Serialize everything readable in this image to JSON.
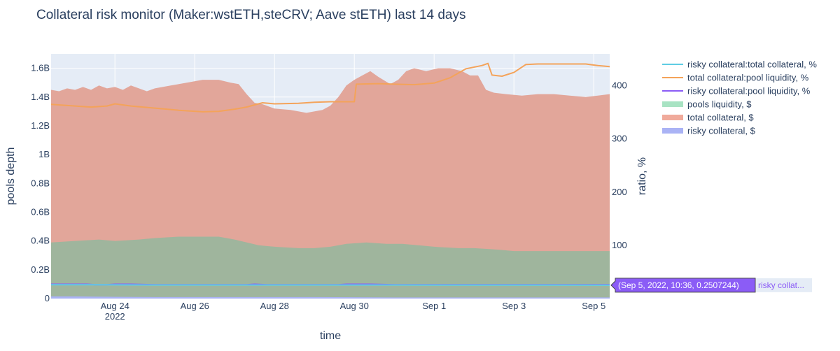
{
  "colors": {
    "plot_bg": "#e5ecf6",
    "grid": "#ffffff",
    "text": "#2a3f5f",
    "risky_total": "#5fcde4",
    "total_pool": "#f4a35a",
    "risky_pool": "#8b5cf6",
    "pools_liquidity_fill": "#9fb59d",
    "pools_liquidity_legend": "#a8e3c3",
    "total_collateral_fill": "#e2a69a",
    "total_collateral_legend": "#f0aa9b",
    "risky_collateral_fill": "#aab3f5",
    "hover_bg": "#8b5cf6",
    "hover_label_bg": "#e5ecf6"
  },
  "chart_data": {
    "type": "area",
    "title": "Collateral risk monitor (Maker:wstETH,steCRV; Aave stETH) last 14 days",
    "xlabel": "time",
    "ylabel": "pools depth",
    "y2label": "ratio, %",
    "x_ticks": [
      "Aug 24",
      "Aug 26",
      "Aug 28",
      "Aug 30",
      "Sep 1",
      "Sep 3",
      "Sep 5"
    ],
    "x_tick_days": [
      1,
      3,
      5,
      7,
      9,
      11,
      13
    ],
    "x_year_label": "2022",
    "x_range_days": [
      -0.6,
      13.4
    ],
    "y_ticks": [
      "0",
      "0.2B",
      "0.4B",
      "0.6B",
      "0.8B",
      "1B",
      "1.2B",
      "1.4B",
      "1.6B"
    ],
    "ylim_billions": [
      0,
      1.7
    ],
    "y2_ticks": [
      "100",
      "200",
      "300",
      "400"
    ],
    "y2lim": [
      0,
      460
    ],
    "legend": [
      {
        "label": "risky collateral:total collateral, %",
        "kind": "line",
        "color_key": "risky_total"
      },
      {
        "label": "total collateral:pool liquidity, %",
        "kind": "line",
        "color_key": "total_pool"
      },
      {
        "label": "risky collateral:pool liquidity, %",
        "kind": "line",
        "color_key": "risky_pool"
      },
      {
        "label": "pools liquidity, $",
        "kind": "area",
        "color_key": "pools_liquidity_legend"
      },
      {
        "label": "total collateral, $",
        "kind": "area",
        "color_key": "total_collateral_legend"
      },
      {
        "label": "risky collateral, $",
        "kind": "area",
        "color_key": "risky_collateral_fill"
      }
    ],
    "series": [
      {
        "name": "total collateral, $",
        "axis": "y",
        "kind": "area",
        "color_key": "total_collateral_fill",
        "points": [
          [
            -0.6,
            1.45
          ],
          [
            -0.4,
            1.44
          ],
          [
            -0.2,
            1.46
          ],
          [
            0,
            1.45
          ],
          [
            0.2,
            1.47
          ],
          [
            0.4,
            1.45
          ],
          [
            0.6,
            1.48
          ],
          [
            0.8,
            1.46
          ],
          [
            1,
            1.47
          ],
          [
            1.2,
            1.45
          ],
          [
            1.4,
            1.48
          ],
          [
            1.6,
            1.46
          ],
          [
            1.8,
            1.44
          ],
          [
            2,
            1.46
          ],
          [
            2.4,
            1.48
          ],
          [
            2.8,
            1.5
          ],
          [
            3.2,
            1.52
          ],
          [
            3.6,
            1.52
          ],
          [
            3.9,
            1.5
          ],
          [
            4.1,
            1.49
          ],
          [
            4.3,
            1.42
          ],
          [
            4.5,
            1.36
          ],
          [
            4.7,
            1.35
          ],
          [
            5,
            1.32
          ],
          [
            5.4,
            1.31
          ],
          [
            5.8,
            1.29
          ],
          [
            6.2,
            1.31
          ],
          [
            6.4,
            1.34
          ],
          [
            6.6,
            1.4
          ],
          [
            6.8,
            1.48
          ],
          [
            7,
            1.52
          ],
          [
            7.2,
            1.55
          ],
          [
            7.4,
            1.58
          ],
          [
            7.6,
            1.54
          ],
          [
            7.9,
            1.49
          ],
          [
            8.1,
            1.52
          ],
          [
            8.3,
            1.58
          ],
          [
            8.5,
            1.6
          ],
          [
            8.8,
            1.58
          ],
          [
            9.1,
            1.6
          ],
          [
            9.4,
            1.6
          ],
          [
            9.7,
            1.58
          ],
          [
            9.9,
            1.55
          ],
          [
            10.1,
            1.55
          ],
          [
            10.3,
            1.45
          ],
          [
            10.5,
            1.43
          ],
          [
            10.8,
            1.42
          ],
          [
            11.2,
            1.41
          ],
          [
            11.6,
            1.42
          ],
          [
            12.0,
            1.42
          ],
          [
            12.4,
            1.41
          ],
          [
            12.8,
            1.4
          ],
          [
            13.1,
            1.41
          ],
          [
            13.4,
            1.42
          ]
        ]
      },
      {
        "name": "pools liquidity, $",
        "axis": "y",
        "kind": "area",
        "color_key": "pools_liquidity_fill",
        "points": [
          [
            -0.6,
            0.39
          ],
          [
            0,
            0.4
          ],
          [
            0.6,
            0.41
          ],
          [
            1,
            0.4
          ],
          [
            1.6,
            0.41
          ],
          [
            2,
            0.42
          ],
          [
            2.6,
            0.43
          ],
          [
            3,
            0.43
          ],
          [
            3.6,
            0.43
          ],
          [
            4,
            0.41
          ],
          [
            4.6,
            0.37
          ],
          [
            5,
            0.36
          ],
          [
            5.6,
            0.35
          ],
          [
            6,
            0.35
          ],
          [
            6.4,
            0.36
          ],
          [
            6.8,
            0.38
          ],
          [
            7.3,
            0.39
          ],
          [
            7.8,
            0.38
          ],
          [
            8.2,
            0.38
          ],
          [
            8.6,
            0.37
          ],
          [
            9,
            0.36
          ],
          [
            9.6,
            0.35
          ],
          [
            10,
            0.35
          ],
          [
            10.6,
            0.34
          ],
          [
            11,
            0.33
          ],
          [
            11.6,
            0.33
          ],
          [
            12,
            0.33
          ],
          [
            12.6,
            0.33
          ],
          [
            13,
            0.33
          ],
          [
            13.4,
            0.33
          ]
        ]
      },
      {
        "name": "risky collateral, $",
        "axis": "y",
        "kind": "area",
        "color_key": "risky_collateral_fill",
        "points": [
          [
            -0.6,
            0.015
          ],
          [
            0,
            0.015
          ],
          [
            1,
            0.012
          ],
          [
            2,
            0.01
          ],
          [
            4,
            0.01
          ],
          [
            6,
            0.01
          ],
          [
            8,
            0.008
          ],
          [
            10,
            0.008
          ],
          [
            12,
            0.008
          ],
          [
            13.4,
            0.008
          ]
        ]
      },
      {
        "name": "total collateral:pool liquidity, %",
        "axis": "y2",
        "kind": "line",
        "color_key": "total_pool",
        "points": [
          [
            -0.6,
            365
          ],
          [
            0,
            362
          ],
          [
            0.4,
            360
          ],
          [
            0.8,
            362
          ],
          [
            1,
            366
          ],
          [
            1.4,
            362
          ],
          [
            2,
            358
          ],
          [
            2.6,
            354
          ],
          [
            3.2,
            351
          ],
          [
            3.6,
            352
          ],
          [
            4.0,
            356
          ],
          [
            4.3,
            360
          ],
          [
            4.5,
            364
          ],
          [
            4.7,
            368
          ],
          [
            5,
            366
          ],
          [
            5.6,
            367
          ],
          [
            6,
            369
          ],
          [
            6.4,
            370
          ],
          [
            6.8,
            370
          ],
          [
            7.0,
            370
          ],
          [
            7.05,
            403
          ],
          [
            7.6,
            404
          ],
          [
            8,
            403
          ],
          [
            8.5,
            402
          ],
          [
            9,
            405
          ],
          [
            9.4,
            415
          ],
          [
            9.8,
            432
          ],
          [
            10.2,
            438
          ],
          [
            10.35,
            442
          ],
          [
            10.45,
            420
          ],
          [
            10.7,
            418
          ],
          [
            11.0,
            425
          ],
          [
            11.3,
            440
          ],
          [
            11.6,
            441
          ],
          [
            12,
            441
          ],
          [
            12.4,
            441
          ],
          [
            12.8,
            441
          ],
          [
            13.1,
            438
          ],
          [
            13.4,
            436
          ]
        ]
      },
      {
        "name": "risky collateral:pool liquidity, %",
        "axis": "y2",
        "kind": "line",
        "color_key": "risky_pool",
        "points": [
          [
            -0.6,
            27
          ],
          [
            -0.2,
            27
          ],
          [
            0,
            27
          ],
          [
            0.3,
            27
          ],
          [
            0.5,
            26
          ],
          [
            0.8,
            26
          ],
          [
            1,
            27
          ],
          [
            1.4,
            27
          ],
          [
            2,
            26
          ],
          [
            2.5,
            26
          ],
          [
            3,
            26
          ],
          [
            4,
            26
          ],
          [
            4.3,
            26
          ],
          [
            4.5,
            27
          ],
          [
            4.8,
            26
          ],
          [
            5.5,
            26
          ],
          [
            6,
            26
          ],
          [
            6.6,
            26
          ],
          [
            6.8,
            27
          ],
          [
            7.4,
            27
          ],
          [
            8,
            26
          ],
          [
            9,
            26
          ],
          [
            10,
            26
          ],
          [
            11,
            26
          ],
          [
            12,
            26
          ],
          [
            13,
            26
          ],
          [
            13.4,
            26
          ]
        ]
      },
      {
        "name": "risky collateral:total collateral, %",
        "axis": "y2",
        "kind": "line",
        "color_key": "risky_total",
        "points": [
          [
            -0.6,
            26
          ],
          [
            0,
            26
          ],
          [
            2,
            25.5
          ],
          [
            4,
            25.5
          ],
          [
            6,
            25.5
          ],
          [
            8,
            25.5
          ],
          [
            10,
            25.3
          ],
          [
            12,
            25.2
          ],
          [
            13.4,
            25.1
          ]
        ]
      }
    ],
    "hover": {
      "text": "(Sep 5, 2022, 10:36, 0.2507244)",
      "label": "risky collat...",
      "value_y2": 25.1
    }
  }
}
